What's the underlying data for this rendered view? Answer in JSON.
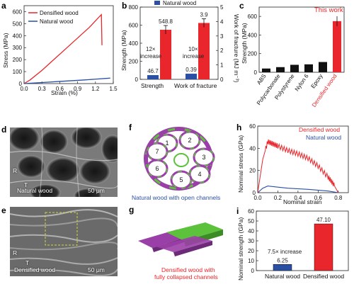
{
  "panels": {
    "a": {
      "letter": "a",
      "xlabel": "Strain (%)",
      "ylabel": "Stress (MPa)",
      "legend": [
        "Densified wood",
        "Natural wood"
      ],
      "xticks": [
        "0.0",
        "0.3",
        "0.6",
        "0.9",
        "1.2",
        "1.5"
      ],
      "yticks": [
        "0",
        "100",
        "200",
        "300",
        "400",
        "500",
        "600"
      ]
    },
    "b": {
      "letter": "b",
      "ylabel_left": "Strength (MPa)",
      "ylabel_right": "Work of fracture (MJ m⁻³)",
      "legend_partial": "Natural wood",
      "yticks_left": [
        "0",
        "200",
        "400",
        "600",
        "800"
      ],
      "yticks_right": [
        "0",
        "1",
        "2",
        "3",
        "4",
        "5"
      ],
      "groups": [
        "Strength",
        "Work of fracture"
      ],
      "annotations": [
        "12×",
        "increase",
        "10×",
        "increase"
      ]
    },
    "c": {
      "letter": "c",
      "ylabel": "Strength (MPa)",
      "annotation": "This work",
      "yticks": [
        "0",
        "200",
        "400",
        "600"
      ]
    },
    "d": {
      "letter": "d",
      "caption": "Natural wood",
      "scale": "50 μm",
      "axis_r": "R",
      "axis_t": "T"
    },
    "e": {
      "letter": "e",
      "caption": "Densified wood",
      "scale": "50 μm",
      "axis_r": "R",
      "axis_t": "T"
    },
    "f": {
      "letter": "f",
      "caption": "Natural wood with open channels",
      "cells": [
        "1",
        "2",
        "3",
        "4",
        "5",
        "6",
        "7"
      ]
    },
    "g": {
      "letter": "g",
      "caption_line1": "Densified wood with",
      "caption_line2": "fully collapsed channels"
    },
    "h": {
      "letter": "h",
      "xlabel": "Nominal strain",
      "ylabel": "Nominal stress (GPa)",
      "legend": [
        "Densified wood",
        "Natural wood"
      ],
      "xticks": [
        "0.0",
        "0.2",
        "0.4",
        "0.6",
        "0.8"
      ],
      "yticks": [
        "0",
        "20",
        "40",
        "60"
      ]
    },
    "i": {
      "letter": "i",
      "ylabel": "Nominal strength (GPa)",
      "annotation": "7.5× increase",
      "yticks": [
        "0",
        "10",
        "20",
        "30",
        "40",
        "50",
        "60"
      ]
    }
  },
  "colors": {
    "densified": "#e8262b",
    "natural": "#2b4fa3",
    "purple": "#9b3fa8",
    "green": "#5cc13b"
  },
  "chart_data": [
    {
      "panel": "a",
      "type": "line",
      "xlabel": "Strain (%)",
      "ylabel": "Stress (MPa)",
      "xlim": [
        0,
        1.5
      ],
      "ylim": [
        0,
        650
      ],
      "series": [
        {
          "name": "Densified wood",
          "x": [
            0,
            0.1,
            0.3,
            0.5,
            0.7,
            0.9,
            1.1,
            1.25,
            1.3,
            1.31
          ],
          "y": [
            0,
            30,
            110,
            200,
            290,
            380,
            470,
            550,
            575,
            320
          ]
        },
        {
          "name": "Natural wood",
          "x": [
            0,
            0.2,
            0.4,
            0.6,
            0.8,
            1.0,
            1.2,
            1.4,
            1.45
          ],
          "y": [
            0,
            6,
            12,
            18,
            24,
            30,
            37,
            44,
            46
          ]
        }
      ]
    },
    {
      "panel": "b",
      "type": "bar",
      "categories": [
        "Strength",
        "Work of fracture"
      ],
      "series": [
        {
          "name": "Natural wood",
          "values": [
            46.7,
            0.39
          ],
          "labels": [
            "46.7",
            "0.39"
          ]
        },
        {
          "name": "Densified wood",
          "values": [
            548.8,
            3.9
          ],
          "labels": [
            "548.8",
            "3.9"
          ]
        }
      ],
      "ylim_left": [
        0,
        800
      ],
      "ylim_right": [
        0,
        5
      ]
    },
    {
      "panel": "c",
      "type": "bar",
      "categories": [
        "ABS",
        "Polycarbonate",
        "Polystyrene",
        "Nylon 6",
        "Epoxy",
        "Densified wood"
      ],
      "values": [
        40,
        55,
        80,
        85,
        110,
        548.8
      ],
      "ylim": [
        0,
        700
      ]
    },
    {
      "panel": "h",
      "type": "line",
      "xlabel": "Nominal strain",
      "ylabel": "Nominal stress (GPa)",
      "xlim": [
        0,
        0.9
      ],
      "ylim": [
        0,
        60
      ],
      "series": [
        {
          "name": "Densified wood",
          "x": [
            0,
            0.05,
            0.1,
            0.15,
            0.2,
            0.3,
            0.4,
            0.5,
            0.6,
            0.7,
            0.75,
            0.8
          ],
          "y": [
            0,
            30,
            46,
            44,
            42,
            38,
            35,
            31,
            24,
            14,
            8,
            0
          ]
        },
        {
          "name": "Natural wood",
          "x": [
            0,
            0.05,
            0.1,
            0.2,
            0.3,
            0.5,
            0.7,
            0.8
          ],
          "y": [
            0,
            4,
            6,
            5,
            4,
            3,
            1.5,
            0
          ]
        }
      ]
    },
    {
      "panel": "i",
      "type": "bar",
      "categories": [
        "Natural wood",
        "Densified wood"
      ],
      "values": [
        6.25,
        47.1
      ],
      "labels": [
        "6.25",
        "47.10"
      ],
      "ylim": [
        0,
        60
      ]
    }
  ]
}
